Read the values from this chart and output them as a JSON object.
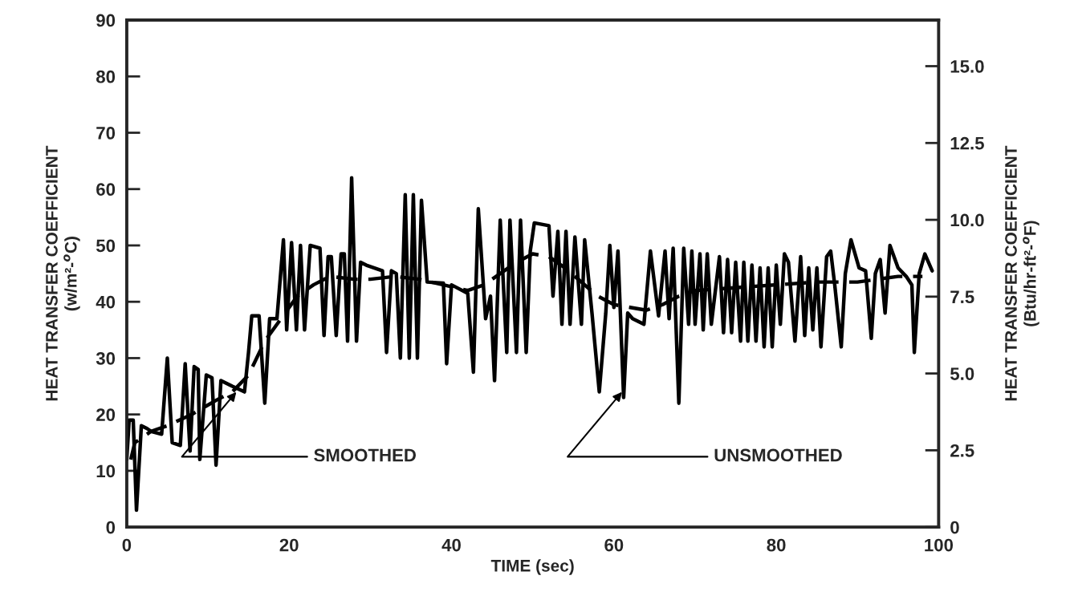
{
  "chart_data": {
    "type": "line",
    "xlabel": "TIME (sec)",
    "ylabel": "HEAT TRANSFER COEFFICIENT\n(w/m²-$^{o}$C)",
    "y2label": "HEAT TRANSFER COEFFICIENT\n(Btu/hr-ft²-$^{o}$F)",
    "xlim": [
      0,
      100
    ],
    "xticks": [
      0,
      20,
      40,
      60,
      80,
      100
    ],
    "ylim": [
      0,
      90
    ],
    "yticks": [
      0,
      10,
      20,
      30,
      40,
      50,
      60,
      70,
      80,
      90
    ],
    "y2lim": [
      0,
      16.5
    ],
    "y2ticks": [
      0,
      2.5,
      {
        "value": 5,
        "label": "5.0"
      },
      7.5,
      {
        "value": 10,
        "label": "10.0"
      },
      12.5,
      {
        "value": 15,
        "label": "15.0"
      }
    ],
    "grid": false,
    "marker": "none",
    "series": [
      {
        "color": "#000000",
        "line_style": "solid",
        "x": [
          0,
          0.3,
          0.8,
          1.2,
          1.8,
          2.5,
          3,
          4.3,
          5,
          5.6,
          6.6,
          7.2,
          7.8,
          8.3,
          8.8,
          9,
          9.8,
          10.5,
          11,
          11.6,
          13,
          14.5,
          15,
          15.4,
          16.3,
          17,
          17.6,
          18.5,
          19.3,
          19.7,
          20.3,
          20.9,
          21.4,
          21.9,
          22.6,
          23.8,
          24.3,
          24.8,
          25.2,
          25.8,
          26.4,
          26.8,
          27.2,
          27.7,
          28.3,
          28.8,
          29.5,
          31.5,
          32,
          32.6,
          33.2,
          33.7,
          34.3,
          34.8,
          35.3,
          35.8,
          36.3,
          37,
          39,
          39.4,
          40,
          42,
          42.7,
          43.3,
          44.2,
          44.8,
          45.3,
          46,
          46.8,
          47.2,
          48,
          48.5,
          49.2,
          49.7,
          50.2,
          52,
          52.5,
          53.1,
          53.6,
          54.1,
          54.6,
          55.2,
          56,
          56.4,
          57.3,
          58.2,
          59,
          59.5,
          60,
          60.5,
          61.2,
          61.7,
          62.3,
          63.7,
          64.5,
          65.5,
          66.3,
          66.8,
          67.3,
          68,
          68.6,
          69.2,
          69.6,
          70,
          70.6,
          71,
          71.5,
          72,
          73,
          73.5,
          74,
          74.5,
          75,
          75.6,
          76,
          76.5,
          77,
          77.5,
          78,
          78.5,
          79,
          79.5,
          80,
          80.5,
          81,
          81.5,
          82.3,
          83,
          83.5,
          84,
          84.5,
          85,
          85.5,
          86.2,
          86.7,
          87.2,
          88,
          88.5,
          89.2,
          90.2,
          91,
          91.7,
          92.2,
          92.8,
          93.4,
          94,
          95,
          96,
          96.7,
          97,
          97.6,
          98.3,
          99.2
        ],
        "values": [
          12,
          19,
          19,
          3,
          18,
          17.5,
          17,
          16.5,
          30,
          15,
          14.5,
          29,
          13.5,
          28.5,
          28,
          12,
          27,
          26.5,
          11,
          26,
          25,
          24,
          31,
          37.5,
          37.5,
          22,
          37,
          37,
          51,
          35,
          50.5,
          35,
          50,
          35,
          50,
          49.5,
          34,
          48,
          48,
          34,
          48.5,
          48.5,
          33,
          62,
          33,
          47,
          46.5,
          45.5,
          31,
          45.5,
          45,
          30,
          59,
          30,
          59,
          30,
          58,
          43.5,
          43.3,
          29,
          43,
          41.5,
          27.5,
          56.5,
          37,
          41,
          26,
          54.5,
          31,
          54.5,
          31,
          54.5,
          31,
          49,
          54,
          53.5,
          41,
          52.5,
          36,
          52.5,
          36,
          51.5,
          36,
          51,
          38,
          24,
          38,
          50,
          39,
          49,
          23,
          38,
          37,
          36,
          49,
          37.5,
          49,
          37,
          49.5,
          22,
          49.5,
          36,
          49,
          36,
          48.5,
          35,
          48.5,
          36,
          48,
          34.5,
          47.5,
          34.5,
          47,
          33,
          47,
          33,
          46.5,
          33,
          46,
          32,
          46,
          32,
          46.5,
          36,
          48.5,
          47,
          33,
          48,
          34,
          46,
          35,
          46,
          32,
          48,
          49,
          43,
          32,
          45,
          51,
          46,
          45.5,
          33.5,
          45,
          47.5,
          38,
          50,
          46,
          44.5,
          43,
          31,
          45,
          48.5,
          45.5
        ]
      },
      {
        "color": "#000000",
        "line_style": "dashed",
        "x": [
          0.5,
          1,
          2,
          3,
          5,
          8,
          11,
          13,
          15,
          17,
          19,
          21,
          23,
          25,
          28,
          30,
          33,
          36,
          39,
          42,
          44,
          46,
          48,
          50,
          52,
          54,
          56,
          58,
          60,
          62,
          64,
          66,
          68,
          70,
          75,
          80,
          85,
          90,
          95,
          98
        ],
        "values": [
          12,
          15,
          16,
          17,
          18,
          20,
          22.5,
          24,
          27,
          33,
          37,
          41,
          43,
          44.5,
          44,
          44,
          44.5,
          44,
          43,
          42,
          43,
          45,
          47,
          48.5,
          48,
          46,
          43.5,
          41,
          39.5,
          39,
          38.5,
          39.5,
          41,
          42,
          42.5,
          43,
          43.5,
          43.5,
          44.5,
          44.5
        ]
      }
    ],
    "annotations": [
      {
        "text": "SMOOTHED",
        "x": 13.5,
        "y": 24
      },
      {
        "text": "UNSMOOTHED",
        "x": 61,
        "y": 24
      }
    ]
  }
}
